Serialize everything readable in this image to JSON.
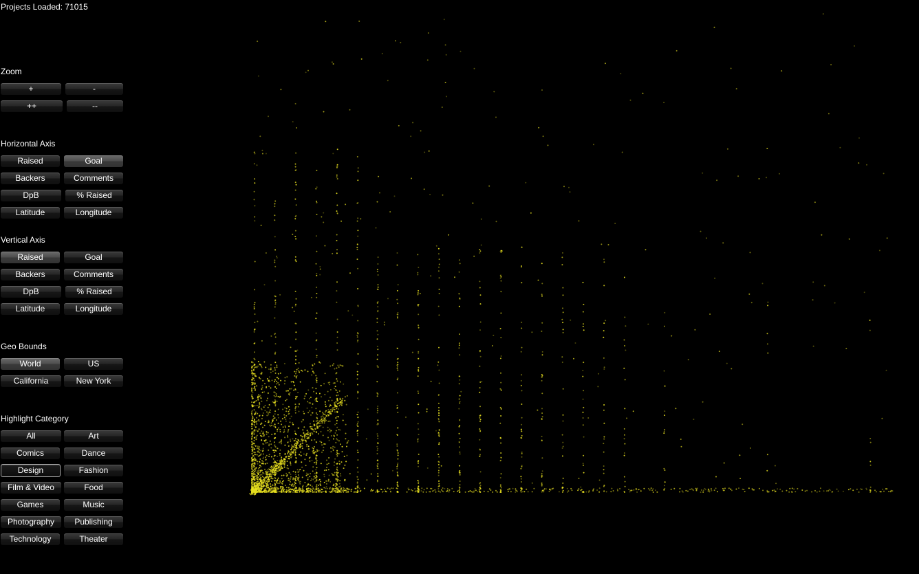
{
  "status": {
    "text": "Projects Loaded: 71015"
  },
  "zoom": {
    "title": "Zoom",
    "buttons": [
      "+",
      "-",
      "++",
      "--"
    ]
  },
  "horizontal_axis": {
    "title": "Horizontal Axis",
    "buttons": [
      "Raised",
      "Goal",
      "Backers",
      "Comments",
      "DpB",
      "% Raised",
      "Latitude",
      "Longitude"
    ],
    "selected": "Goal"
  },
  "vertical_axis": {
    "title": "Vertical Axis",
    "buttons": [
      "Raised",
      "Goal",
      "Backers",
      "Comments",
      "DpB",
      "% Raised",
      "Latitude",
      "Longitude"
    ],
    "selected": "Raised"
  },
  "geo_bounds": {
    "title": "Geo Bounds",
    "buttons": [
      "World",
      "US",
      "California",
      "New York"
    ],
    "selected": "World"
  },
  "highlight_category": {
    "title": "Highlight Category",
    "buttons": [
      "All",
      "Art",
      "Comics",
      "Dance",
      "Design",
      "Fashion",
      "Film & Video",
      "Food",
      "Games",
      "Music",
      "Photography",
      "Publishing",
      "Technology",
      "Theater"
    ],
    "selected": "Design"
  },
  "plot": {
    "point_color": "#e8e020"
  }
}
